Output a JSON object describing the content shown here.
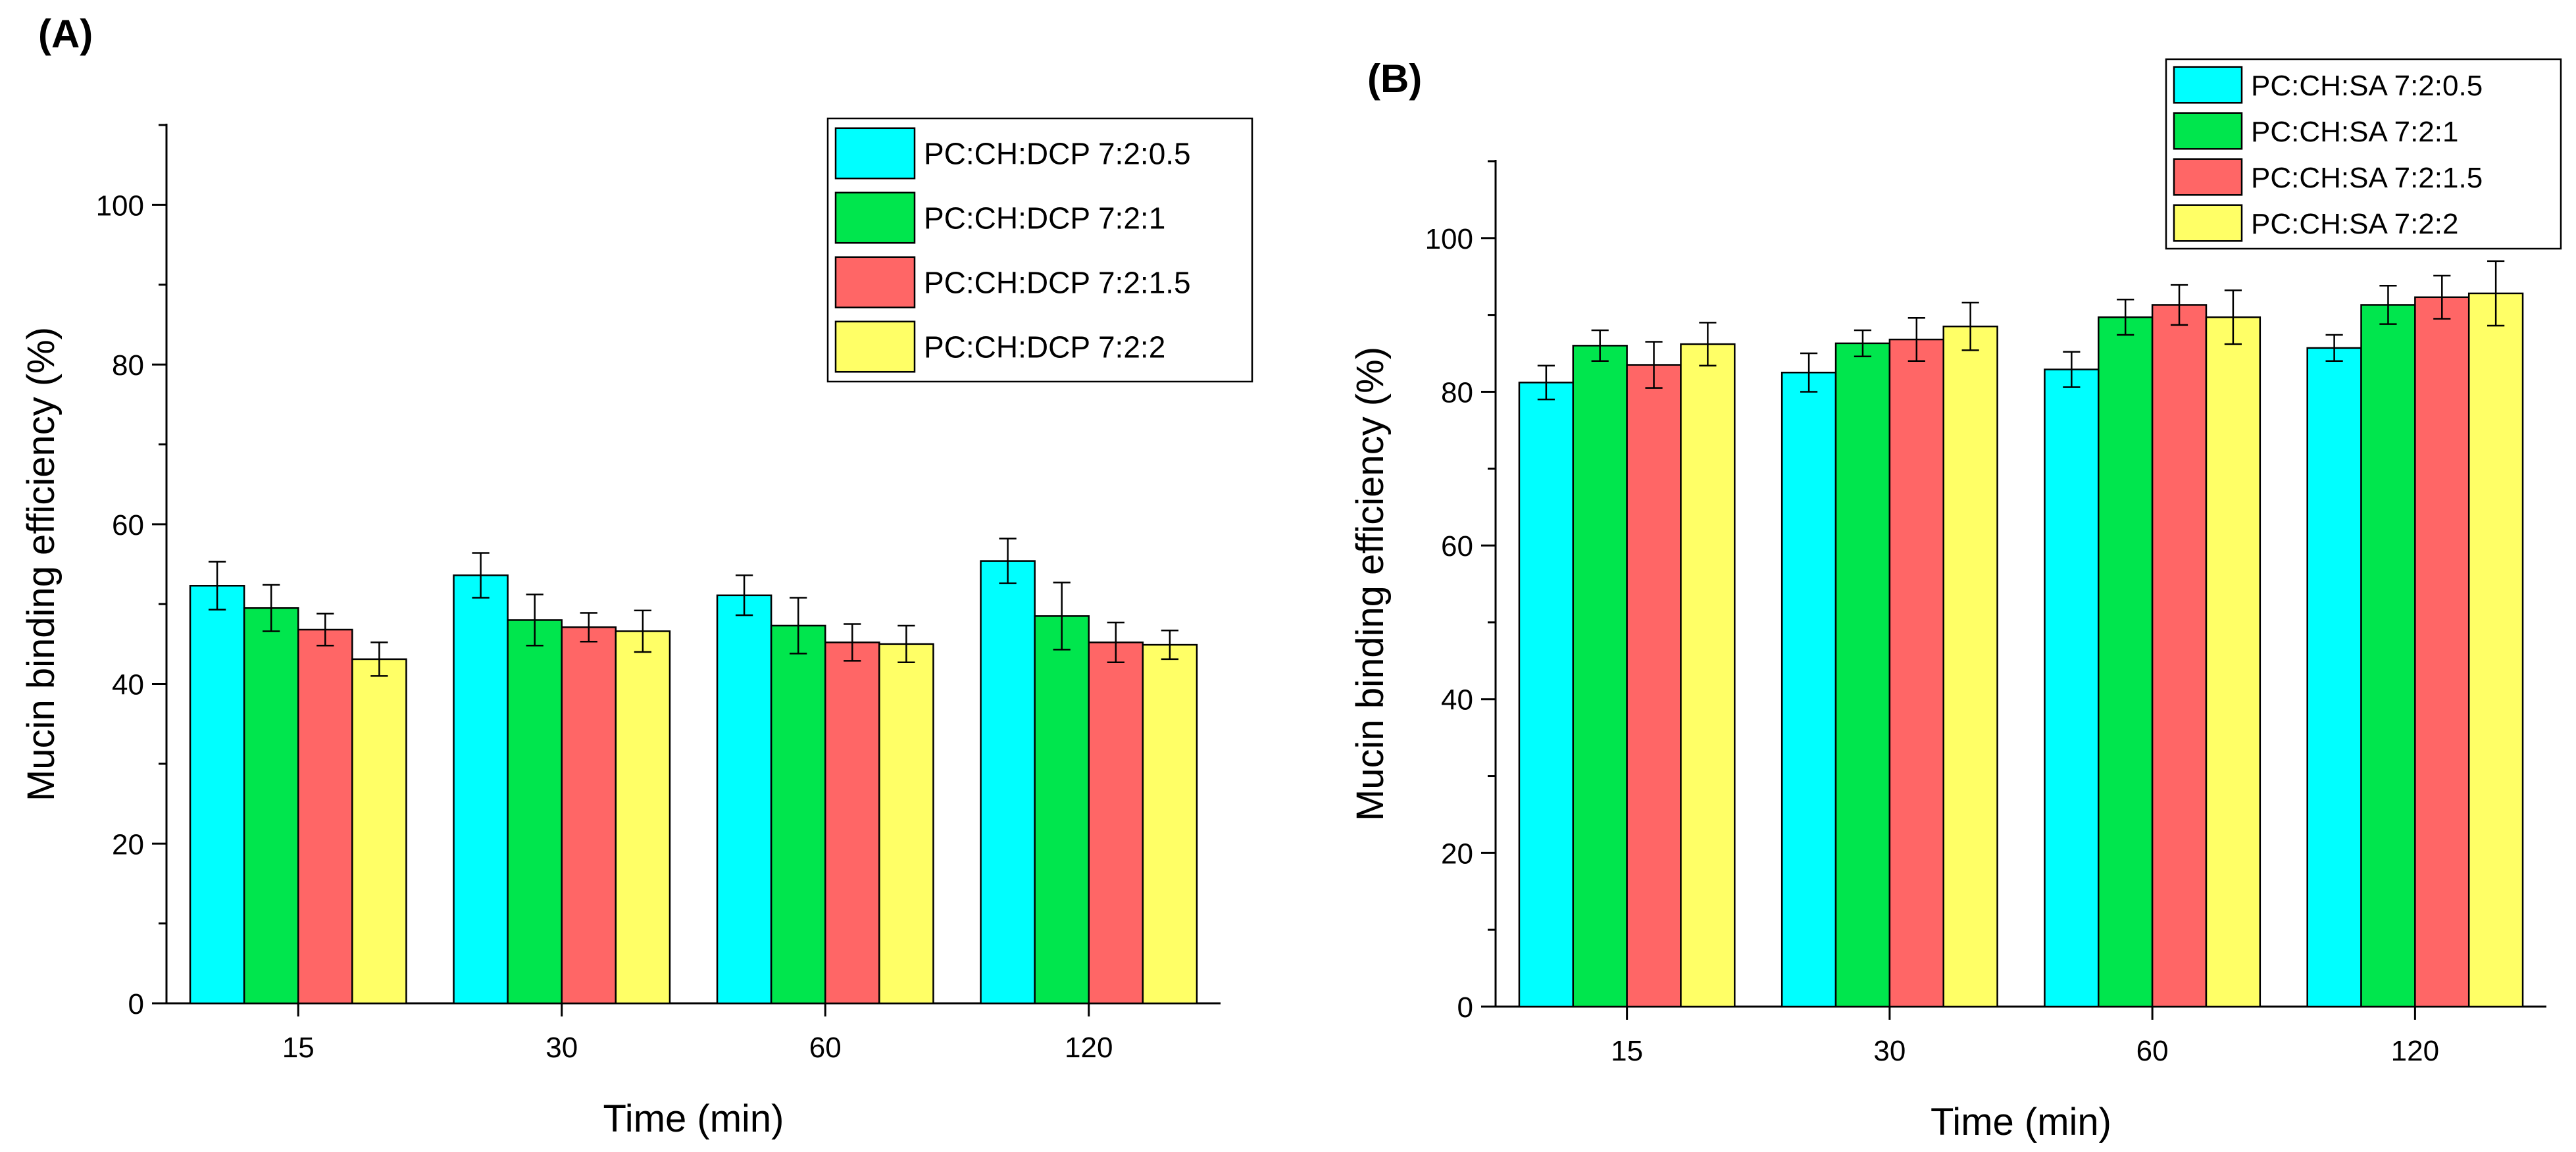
{
  "panel_labels": [
    "(A)",
    "(B)"
  ],
  "chart_data": [
    {
      "type": "bar",
      "panel": "(A)",
      "title": "",
      "xlabel": "Time (min)",
      "ylabel": "Mucin binding efficiency (%)",
      "ylim": [
        0,
        110
      ],
      "yticks": [
        0,
        20,
        40,
        60,
        80,
        100
      ],
      "categories": [
        "15",
        "30",
        "60",
        "120"
      ],
      "legend_position": "top-right",
      "series": [
        {
          "name": "PC:CH:DCP 7:2:0.5",
          "color": "#00FFFF",
          "values": [
            52.3,
            53.6,
            51.1,
            55.4
          ],
          "errors": [
            3.0,
            2.8,
            2.5,
            2.8
          ]
        },
        {
          "name": "PC:CH:DCP 7:2:1",
          "color": "#00E64D",
          "values": [
            49.5,
            48.0,
            47.3,
            48.5
          ],
          "errors": [
            2.9,
            3.2,
            3.5,
            4.2
          ]
        },
        {
          "name": "PC:CH:DCP 7:2:1.5",
          "color": "#FF6666",
          "values": [
            46.8,
            47.1,
            45.2,
            45.2
          ],
          "errors": [
            2.0,
            1.8,
            2.3,
            2.5
          ]
        },
        {
          "name": "PC:CH:DCP 7:2:2",
          "color": "#FFFF66",
          "values": [
            43.1,
            46.6,
            45.0,
            44.9
          ],
          "errors": [
            2.1,
            2.6,
            2.3,
            1.8
          ]
        }
      ]
    },
    {
      "type": "bar",
      "panel": "(B)",
      "title": "",
      "xlabel": "Time (min)",
      "ylabel": "Mucin binding efficiency (%)",
      "ylim": [
        0,
        110
      ],
      "yticks": [
        0,
        20,
        40,
        60,
        80,
        100
      ],
      "categories": [
        "15",
        "30",
        "60",
        "120"
      ],
      "legend_position": "top-right",
      "series": [
        {
          "name": "PC:CH:SA 7:2:0.5",
          "color": "#00FFFF",
          "values": [
            81.2,
            82.5,
            82.9,
            85.7
          ],
          "errors": [
            2.2,
            2.5,
            2.3,
            1.7
          ]
        },
        {
          "name": "PC:CH:SA 7:2:1",
          "color": "#00E64D",
          "values": [
            86.0,
            86.3,
            89.7,
            91.3
          ],
          "errors": [
            2.0,
            1.7,
            2.3,
            2.5
          ]
        },
        {
          "name": "PC:CH:SA 7:2:1.5",
          "color": "#FF6666",
          "values": [
            83.5,
            86.8,
            91.3,
            92.3
          ],
          "errors": [
            3.0,
            2.8,
            2.6,
            2.8
          ]
        },
        {
          "name": "PC:CH:SA 7:2:2",
          "color": "#FFFF66",
          "values": [
            86.2,
            88.5,
            89.7,
            92.8
          ],
          "errors": [
            2.8,
            3.1,
            3.5,
            4.2
          ]
        }
      ]
    }
  ]
}
